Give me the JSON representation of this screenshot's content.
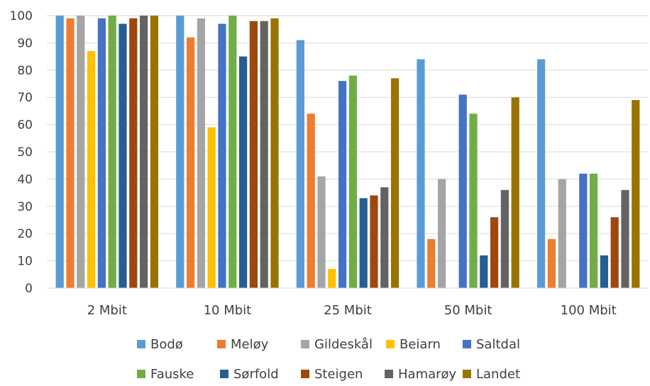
{
  "chart_data": {
    "type": "bar",
    "title": "",
    "xlabel": "",
    "ylabel": "",
    "ylim": [
      0,
      100
    ],
    "yticks": [
      0,
      10,
      20,
      30,
      40,
      50,
      60,
      70,
      80,
      90,
      100
    ],
    "grid": true,
    "legend_position": "bottom",
    "categories": [
      "2 Mbit",
      "10 Mbit",
      "25 Mbit",
      "50 Mbit",
      "100 Mbit"
    ],
    "series": [
      {
        "name": "Bodø",
        "color": "#5B9BD5",
        "values": [
          100,
          100,
          91,
          84,
          84
        ]
      },
      {
        "name": "Meløy",
        "color": "#ED7D31",
        "values": [
          99,
          92,
          64,
          18,
          18
        ]
      },
      {
        "name": "Gildeskål",
        "color": "#A5A5A5",
        "values": [
          100,
          99,
          41,
          40,
          40
        ]
      },
      {
        "name": "Beiarn",
        "color": "#FFC000",
        "values": [
          87,
          59,
          7,
          0,
          0
        ]
      },
      {
        "name": "Saltdal",
        "color": "#4472C4",
        "values": [
          99,
          97,
          76,
          71,
          42
        ]
      },
      {
        "name": "Fauske",
        "color": "#70AD47",
        "values": [
          100,
          100,
          78,
          64,
          42
        ]
      },
      {
        "name": "Sørfold",
        "color": "#255E91",
        "values": [
          97,
          85,
          33,
          12,
          12
        ]
      },
      {
        "name": "Steigen",
        "color": "#9E480E",
        "values": [
          99,
          98,
          34,
          26,
          26
        ]
      },
      {
        "name": "Hamarøy",
        "color": "#636363",
        "values": [
          100,
          98,
          37,
          36,
          36
        ]
      },
      {
        "name": "Landet",
        "color": "#997300",
        "values": [
          100,
          99,
          77,
          70,
          69
        ]
      }
    ]
  }
}
